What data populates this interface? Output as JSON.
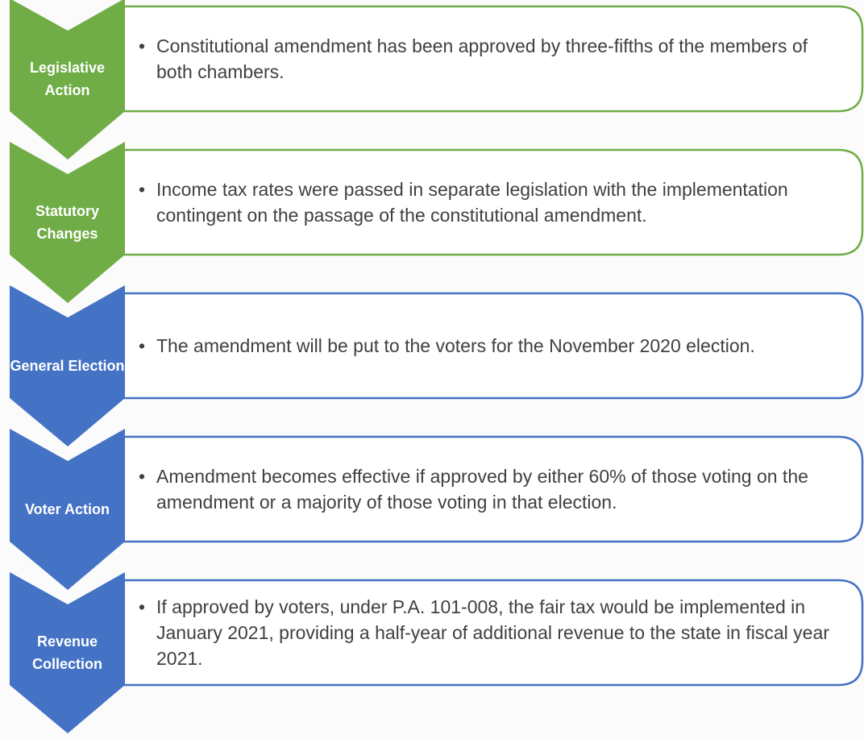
{
  "steps": [
    {
      "label": "Legislative Action",
      "text": "Constitutional amendment has been approved by three-fifths of the members of both chambers.",
      "color": "#70ad47"
    },
    {
      "label": "Statutory Changes",
      "text": "Income tax rates were passed in separate legislation with the implementation contingent on the passage of the constitutional amendment.",
      "color": "#70ad47"
    },
    {
      "label": "General Election",
      "text": "The amendment will be put to the voters for the November 2020 election.",
      "color": "#4472c4"
    },
    {
      "label": "Voter Action",
      "text": "Amendment becomes effective if approved by either 60% of those voting on the amendment or a majority of those voting in that election.",
      "color": "#4472c4"
    },
    {
      "label": "Revenue Collection",
      "text": "If approved by voters, under P.A. 101-008, the fair tax would be implemented in January 2021, providing a half-year of additional revenue to the state in fiscal year 2021.",
      "color": "#4472c4"
    }
  ]
}
